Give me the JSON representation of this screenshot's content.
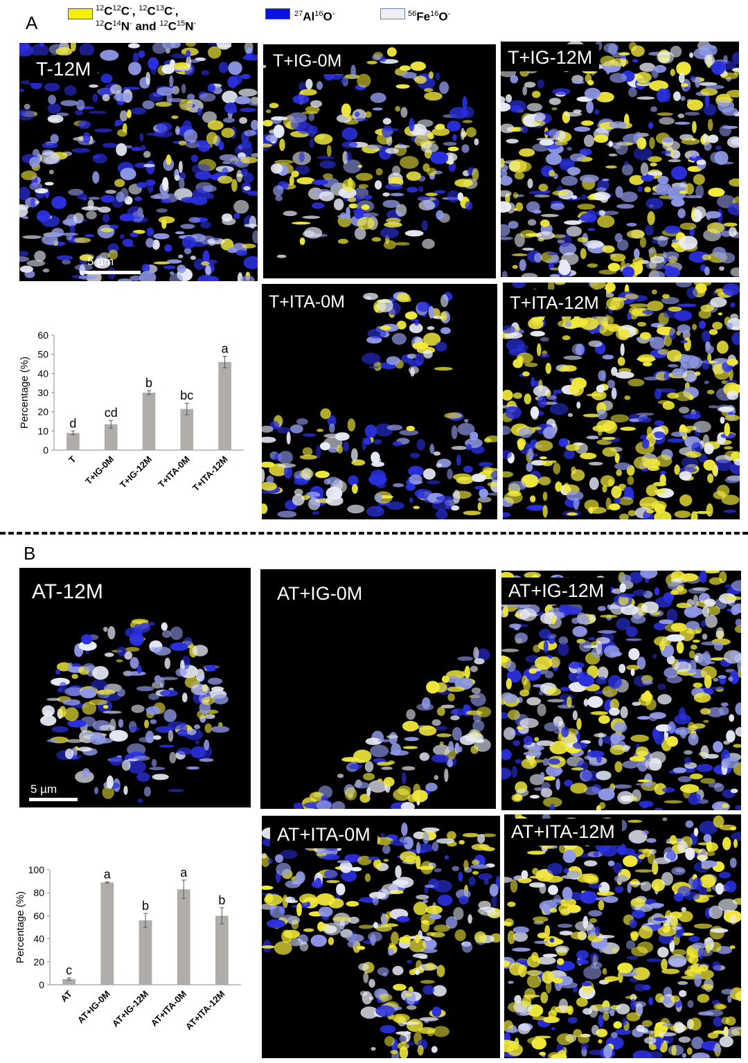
{
  "figure": {
    "legend": [
      {
        "text_html": "<sup>12</sup>C<sup>12</sup>C<sup>-</sup>, <sup>12</sup>C<sup>13</sup>C<sup>-</sup>,",
        "line2_html": "<sup>12</sup>C<sup>14</sup>N<sup>-</sup> and <sup>12</sup>C<sup>15</sup>N<sup>-</sup>",
        "color": "#f5f000"
      },
      {
        "text_html": "<sup>27</sup>Al<sup>16</sup>O<sup>-</sup>",
        "color": "#0a10e6"
      },
      {
        "text_html": "<sup>56</sup>Fe<sup>16</sup>O<sup>-</sup>",
        "color": "#eef0f6"
      }
    ],
    "panel_a": {
      "letter": "A",
      "scale_bar": "5 µm",
      "images": [
        "T-12M",
        "T+IG-0M",
        "T+IG-12M",
        "T+ITA-0M",
        "T+ITA-12M"
      ]
    },
    "panel_b": {
      "letter": "B",
      "scale_bar": "5 µm",
      "images": [
        "AT-12M",
        "AT+IG-0M",
        "AT+IG-12M",
        "AT+ITA-0M",
        "AT+ITA-12M"
      ]
    }
  },
  "chart_data": [
    {
      "type": "bar",
      "categories": [
        "T",
        "T+IG-0M",
        "T+IG-12M",
        "T+ITA-0M",
        "T+ITA-12M"
      ],
      "values": [
        9,
        13.5,
        30,
        21.5,
        46
      ],
      "errors": [
        1,
        2,
        1,
        3,
        3
      ],
      "letters": [
        "d",
        "cd",
        "b",
        "bc",
        "a"
      ],
      "ylabel": "Percentage (%)",
      "ylim": [
        0,
        60
      ],
      "yticks": [
        0,
        10,
        20,
        30,
        40,
        50,
        60
      ],
      "bar_color": "#b0aca8",
      "grid": false
    },
    {
      "type": "bar",
      "categories": [
        "AT",
        "AT+IG-0M",
        "AT+IG-12M",
        "AT+ITA-0M",
        "AT+ITA-12M"
      ],
      "values": [
        5,
        89,
        56,
        83,
        60
      ],
      "errors": [
        1,
        0.5,
        6,
        8,
        7
      ],
      "letters": [
        "c",
        "a",
        "b",
        "a",
        "b"
      ],
      "ylabel": "Percentage (%)",
      "ylim": [
        0,
        100
      ],
      "yticks": [
        0,
        20,
        40,
        60,
        80,
        100
      ],
      "bar_color": "#b0aca8",
      "grid": false
    }
  ]
}
